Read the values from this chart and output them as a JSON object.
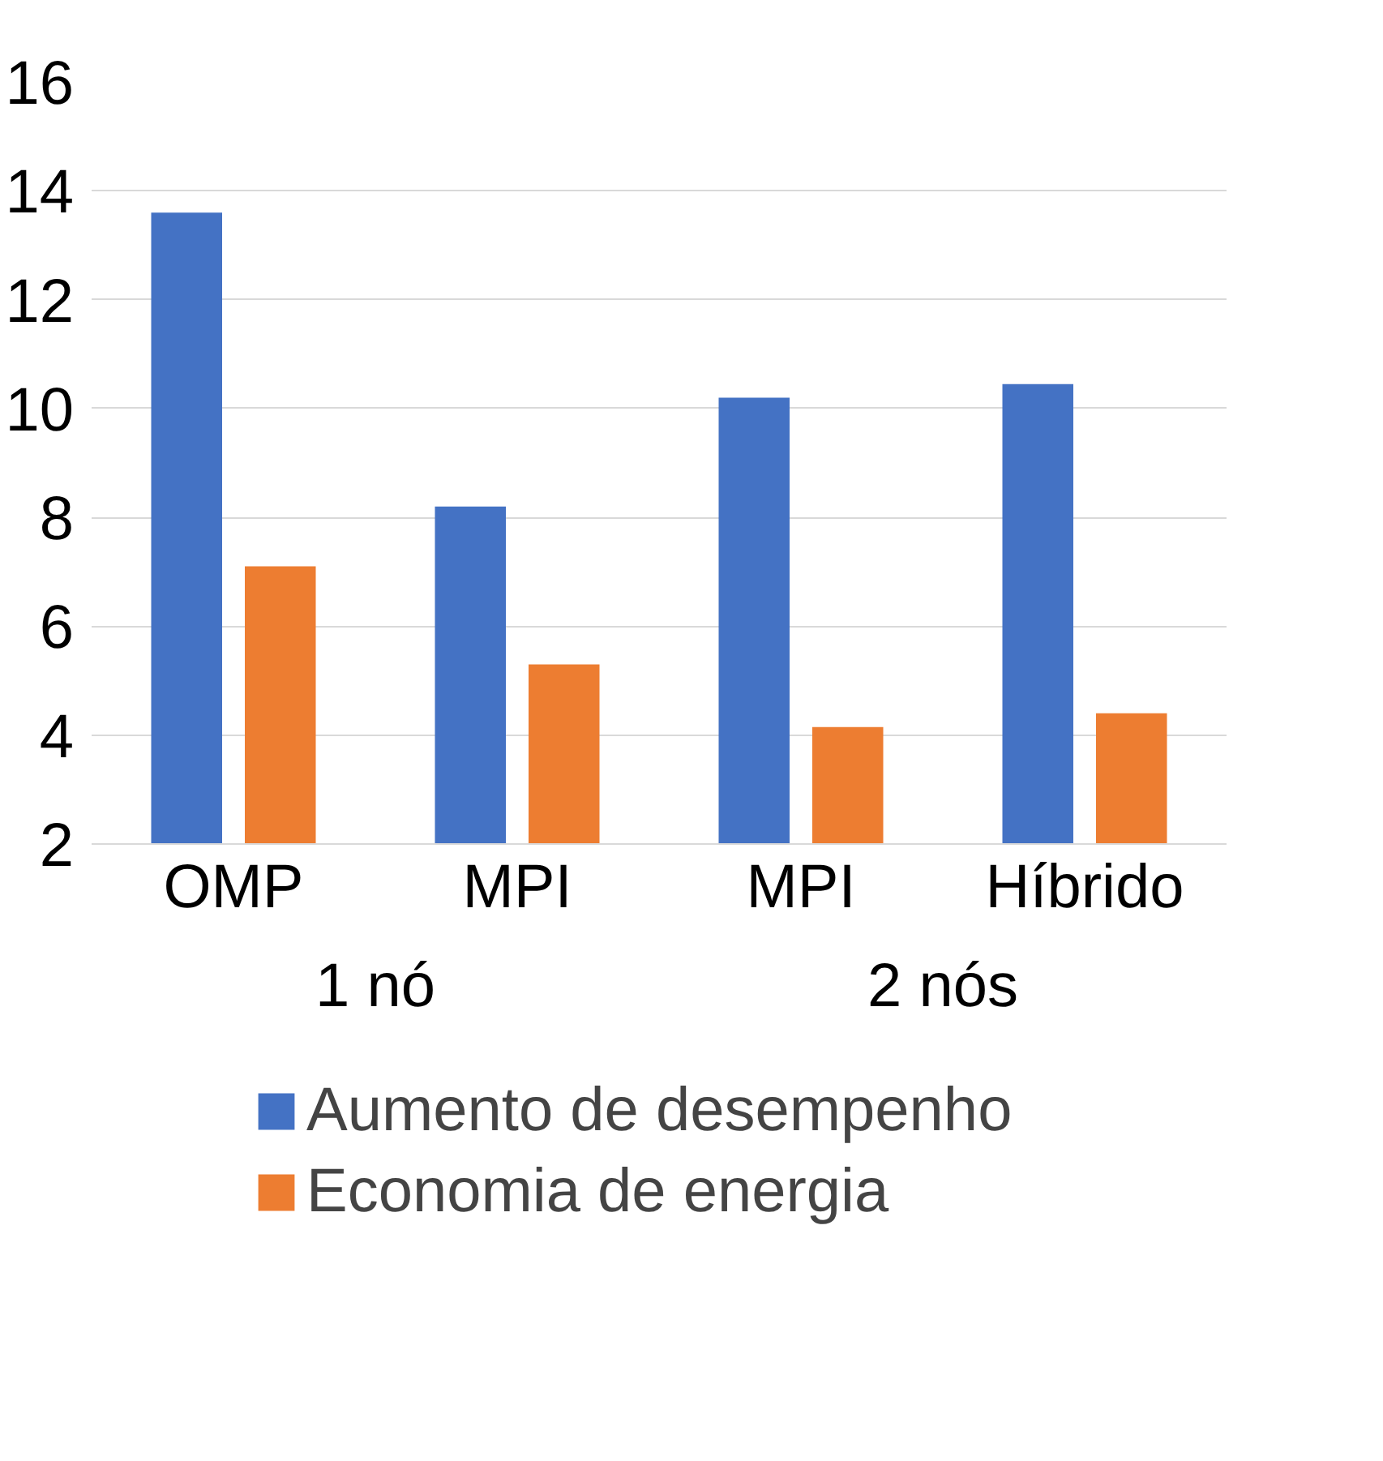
{
  "chart_data": {
    "type": "bar",
    "categories": [
      "OMP",
      "MPI",
      "MPI",
      "Híbrido"
    ],
    "series": [
      {
        "name": "Aumento de desempenho",
        "color": "#4472c4",
        "values": [
          13.6,
          8.2,
          10.2,
          10.45
        ]
      },
      {
        "name": "Economia de energia",
        "color": "#ed7d31",
        "values": [
          7.1,
          5.3,
          4.15,
          4.4
        ]
      }
    ],
    "annotations": [
      "1 nó",
      "2 nós"
    ],
    "ylim": [
      2,
      16
    ],
    "yticks": [
      2,
      4,
      6,
      8,
      10,
      12,
      14,
      16
    ],
    "grid": "y",
    "legend": "bottom"
  }
}
